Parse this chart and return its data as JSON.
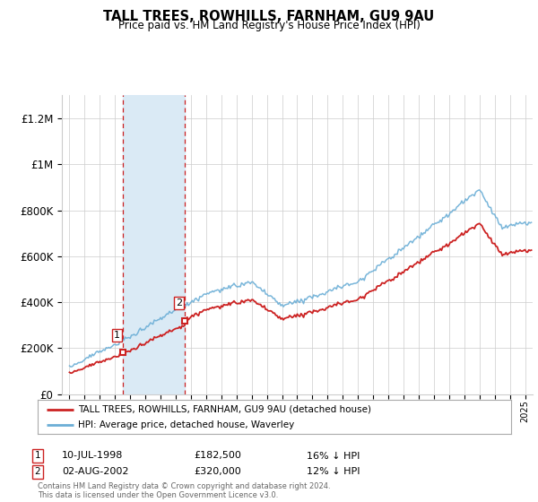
{
  "title": "TALL TREES, ROWHILLS, FARNHAM, GU9 9AU",
  "subtitle": "Price paid vs. HM Land Registry's House Price Index (HPI)",
  "legend_line1": "TALL TREES, ROWHILLS, FARNHAM, GU9 9AU (detached house)",
  "legend_line2": "HPI: Average price, detached house, Waverley",
  "sale1_date": "10-JUL-1998",
  "sale1_price": "£182,500",
  "sale1_hpi": "16% ↓ HPI",
  "sale1_year": 1998.53,
  "sale1_value": 182500,
  "sale2_date": "02-AUG-2002",
  "sale2_price": "£320,000",
  "sale2_hpi": "12% ↓ HPI",
  "sale2_year": 2002.59,
  "sale2_value": 320000,
  "ylim": [
    0,
    1300000
  ],
  "xlim_start": 1994.5,
  "xlim_end": 2025.5,
  "hpi_color": "#6baed6",
  "property_color": "#cc2222",
  "shade_color": "#daeaf5",
  "footnote": "Contains HM Land Registry data © Crown copyright and database right 2024.\nThis data is licensed under the Open Government Licence v3.0.",
  "background_color": "#ffffff",
  "grid_color": "#cccccc"
}
